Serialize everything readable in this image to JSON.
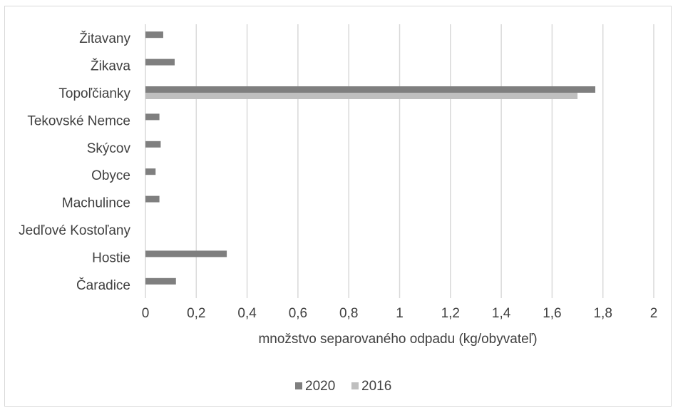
{
  "chart_data": {
    "type": "bar",
    "orientation": "horizontal",
    "categories": [
      "Čaradice",
      "Hostie",
      "Jedľové Kostoľany",
      "Machulince",
      "Obyce",
      "Skýcov",
      "Tekovské Nemce",
      "Topoľčianky",
      "Žikava",
      "Žitavany"
    ],
    "series": [
      {
        "name": "2020",
        "color": "#7f7f7f",
        "values": [
          0.12,
          0.32,
          0,
          0.055,
          0.04,
          0.06,
          0.055,
          1.77,
          0.115,
          0.07
        ]
      },
      {
        "name": "2016",
        "color": "#bfbfbf",
        "values": [
          0,
          0,
          0,
          0,
          0,
          0,
          0,
          1.7,
          0,
          0
        ]
      }
    ],
    "xlim": [
      0,
      2
    ],
    "x_ticks": [
      "0",
      "0,2",
      "0,4",
      "0,6",
      "0,8",
      "1",
      "1,2",
      "1,4",
      "1,6",
      "1,8",
      "2"
    ],
    "xlabel": "množstvo separovaného odpadu (kg/obyvateľ)",
    "ylabel": "",
    "title": "",
    "grid": "vertical",
    "legend_position": "bottom"
  }
}
